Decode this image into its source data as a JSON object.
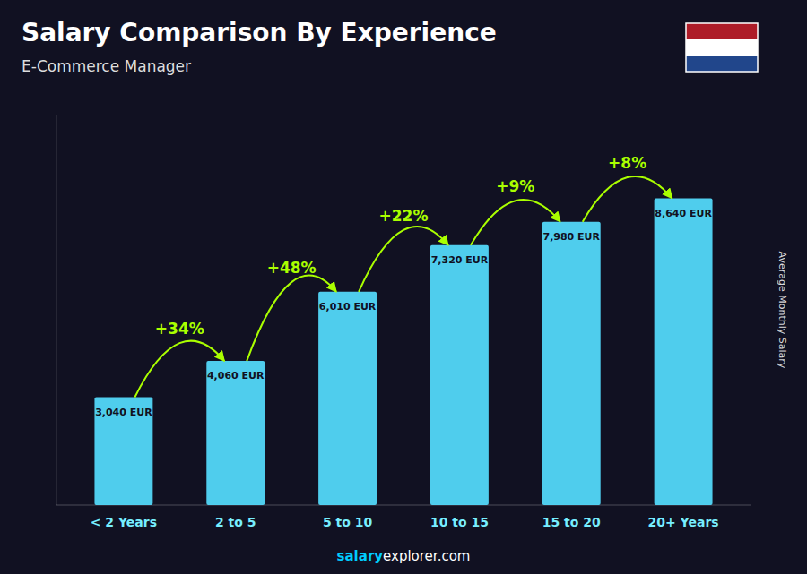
{
  "chart_data": {
    "type": "bar",
    "title": "Salary Comparison By Experience",
    "subtitle": "E-Commerce Manager",
    "ylabel": "Average Monthly Salary",
    "categories": [
      "< 2 Years",
      "2 to 5",
      "5 to 10",
      "10 to 15",
      "15 to 20",
      "20+ Years"
    ],
    "values": [
      3040,
      4060,
      6010,
      7320,
      7980,
      8640
    ],
    "value_labels": [
      "3,040 EUR",
      "4,060 EUR",
      "6,010 EUR",
      "7,320 EUR",
      "7,980 EUR",
      "8,640 EUR"
    ],
    "data_labels": true,
    "annotations": [
      "+34%",
      "+48%",
      "+22%",
      "+9%",
      "+8%"
    ],
    "footer": [
      "salary",
      "explorer.com"
    ],
    "color": "#55DDFF",
    "ylim": [
      0,
      11000
    ],
    "grid": false,
    "tick_labels": "x"
  }
}
